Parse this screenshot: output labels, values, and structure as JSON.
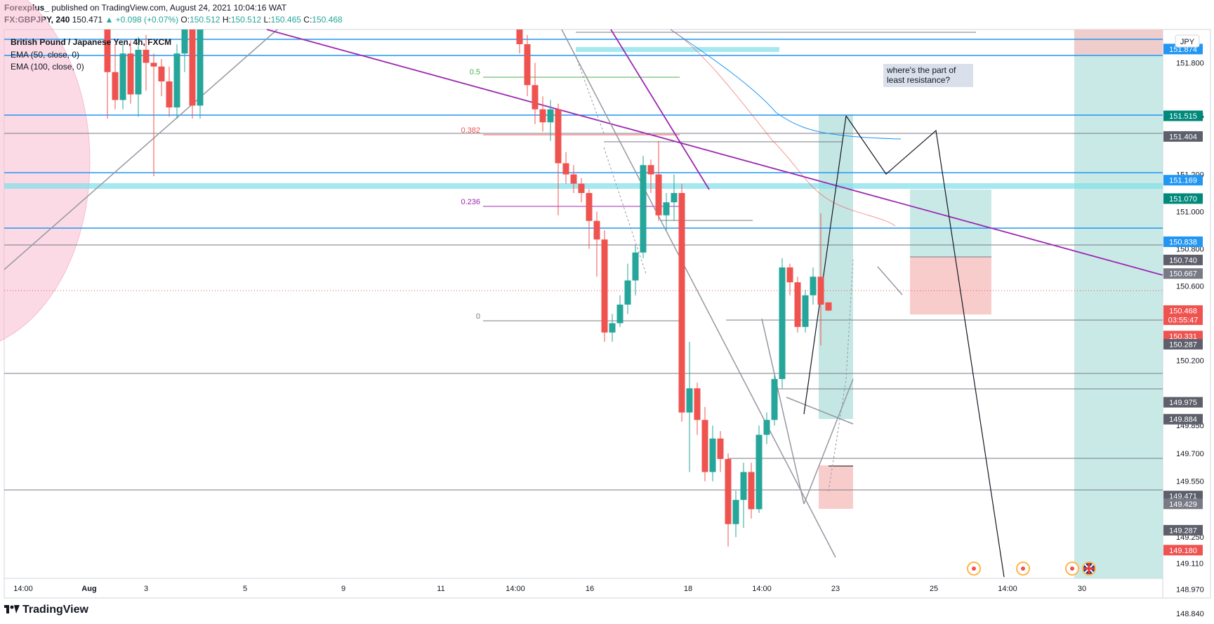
{
  "header": {
    "author": "Forexplus_",
    "published": "published on TradingView.com, August 24, 2021 10:04:16 WAT",
    "symbol": "FX:GBPJPY, 240",
    "last": "150.471",
    "change": "▲ +0.098 (+0.07%)",
    "o_label": "O:",
    "o": "150.512",
    "h_label": "H:",
    "h": "150.512",
    "l_label": "L:",
    "l": "150.465",
    "c_label": "C:",
    "c": "150.468"
  },
  "legend": {
    "title": "British Pound / Japanese Yen, 4h, FXCM",
    "ema50": "EMA (50, close, 0)",
    "ema100": "EMA (100, close, 0)"
  },
  "annotation": "where's the part of least resistance?",
  "currency_badge": "JPY",
  "brand": "TradingView",
  "colors": {
    "up": "#26a69a",
    "down": "#ef5350",
    "blue_line": "#2196f3",
    "purple_line": "#9c27b0",
    "gray_line": "#787b86",
    "cyan_zone": "#80deea",
    "teal_zone": "#b2dfdb",
    "pink_zone": "#f8c6c6"
  },
  "chart_data": {
    "type": "candlestick",
    "instrument": "GBPJPY",
    "timeframe": "4h",
    "ylim": [
      148.76,
      151.99
    ],
    "y_ticks": [
      151.8,
      151.515,
      151.2,
      151.0,
      150.8,
      150.6,
      150.2,
      149.85,
      149.7,
      149.55,
      149.25,
      149.11,
      148.97,
      148.84
    ],
    "x_ticks": [
      "14:00",
      "Aug",
      "3",
      "5",
      "9",
      "11",
      "14:00",
      "16",
      "18",
      "14:00",
      "23",
      "25",
      "14:00",
      "30"
    ],
    "price_labels": [
      {
        "value": "151.874",
        "kind": "blue"
      },
      {
        "value": "151.515",
        "kind": "gray"
      },
      {
        "value": "151.515",
        "kind": "blue"
      },
      {
        "value": "151.515",
        "kind": "teal"
      },
      {
        "value": "151.404",
        "kind": "dark"
      },
      {
        "value": "151.169",
        "kind": "blue"
      },
      {
        "value": "151.070",
        "kind": "teal"
      },
      {
        "value": "150.838",
        "kind": "blue"
      },
      {
        "value": "150.740",
        "kind": "dark"
      },
      {
        "value": "150.667",
        "kind": "gray"
      },
      {
        "value": "150.468",
        "kind": "red"
      },
      {
        "value": "150.331",
        "kind": "red"
      },
      {
        "value": "150.287",
        "kind": "dark"
      },
      {
        "value": "149.975",
        "kind": "dark"
      },
      {
        "value": "149.884",
        "kind": "dark"
      },
      {
        "value": "149.471",
        "kind": "dark"
      },
      {
        "value": "149.429",
        "kind": "gray"
      },
      {
        "value": "149.287",
        "kind": "dark"
      },
      {
        "value": "149.180",
        "kind": "red"
      }
    ],
    "countdown": "03:55:47",
    "fib_levels": [
      {
        "label": "0.5",
        "value": 151.79
      },
      {
        "label": "0.382",
        "value": 151.41
      },
      {
        "label": "0.236",
        "value": 151.03
      },
      {
        "label": "0",
        "value": 150.29
      }
    ],
    "candles": [
      {
        "t": 153,
        "o": 151.99,
        "h": 152.1,
        "l": 151.5,
        "c": 151.75
      },
      {
        "t": 164,
        "o": 151.75,
        "h": 151.9,
        "l": 151.55,
        "c": 151.6
      },
      {
        "t": 175,
        "o": 151.6,
        "h": 151.9,
        "l": 151.55,
        "c": 151.85
      },
      {
        "t": 186,
        "o": 151.85,
        "h": 151.92,
        "l": 151.58,
        "c": 151.63
      },
      {
        "t": 197,
        "o": 151.63,
        "h": 151.94,
        "l": 151.51,
        "c": 151.87
      },
      {
        "t": 208,
        "o": 151.87,
        "h": 151.95,
        "l": 151.65,
        "c": 151.8
      },
      {
        "t": 219,
        "o": 151.8,
        "h": 151.85,
        "l": 151.19,
        "c": 151.78
      },
      {
        "t": 230,
        "o": 151.78,
        "h": 151.82,
        "l": 151.62,
        "c": 151.7
      },
      {
        "t": 241,
        "o": 151.7,
        "h": 151.78,
        "l": 151.51,
        "c": 151.56
      },
      {
        "t": 252,
        "o": 151.56,
        "h": 151.9,
        "l": 151.5,
        "c": 151.85
      },
      {
        "t": 263,
        "o": 151.85,
        "h": 152.1,
        "l": 151.75,
        "c": 151.99
      },
      {
        "t": 274,
        "o": 151.99,
        "h": 152.05,
        "l": 151.5,
        "c": 151.57
      },
      {
        "t": 285,
        "o": 151.57,
        "h": 152.1,
        "l": 151.5,
        "c": 151.99
      },
      {
        "t": 740,
        "o": 151.99,
        "h": 152.1,
        "l": 151.85,
        "c": 151.9
      },
      {
        "t": 751,
        "o": 151.9,
        "h": 151.95,
        "l": 151.62,
        "c": 151.68
      },
      {
        "t": 762,
        "o": 151.68,
        "h": 151.8,
        "l": 151.47,
        "c": 151.55
      },
      {
        "t": 773,
        "o": 151.55,
        "h": 151.62,
        "l": 151.43,
        "c": 151.48
      },
      {
        "t": 784,
        "o": 151.48,
        "h": 151.6,
        "l": 151.38,
        "c": 151.55
      },
      {
        "t": 795,
        "o": 151.55,
        "h": 151.58,
        "l": 150.98,
        "c": 151.26
      },
      {
        "t": 806,
        "o": 151.26,
        "h": 151.32,
        "l": 151.15,
        "c": 151.2
      },
      {
        "t": 817,
        "o": 151.2,
        "h": 151.25,
        "l": 151.1,
        "c": 151.15
      },
      {
        "t": 828,
        "o": 151.15,
        "h": 151.18,
        "l": 151.05,
        "c": 151.1
      },
      {
        "t": 839,
        "o": 151.1,
        "h": 151.12,
        "l": 150.8,
        "c": 150.95
      },
      {
        "t": 850,
        "o": 150.95,
        "h": 151.0,
        "l": 150.65,
        "c": 150.85
      },
      {
        "t": 861,
        "o": 150.85,
        "h": 150.9,
        "l": 150.3,
        "c": 150.35
      },
      {
        "t": 872,
        "o": 150.35,
        "h": 150.45,
        "l": 150.3,
        "c": 150.4
      },
      {
        "t": 883,
        "o": 150.4,
        "h": 150.55,
        "l": 150.38,
        "c": 150.5
      },
      {
        "t": 894,
        "o": 150.5,
        "h": 150.72,
        "l": 150.45,
        "c": 150.63
      },
      {
        "t": 905,
        "o": 150.63,
        "h": 150.82,
        "l": 150.55,
        "c": 150.78
      },
      {
        "t": 916,
        "o": 150.78,
        "h": 151.3,
        "l": 150.75,
        "c": 151.25
      },
      {
        "t": 927,
        "o": 151.25,
        "h": 151.28,
        "l": 151.1,
        "c": 151.2
      },
      {
        "t": 938,
        "o": 151.2,
        "h": 151.38,
        "l": 150.95,
        "c": 150.98
      },
      {
        "t": 949,
        "o": 150.98,
        "h": 151.1,
        "l": 150.9,
        "c": 151.05
      },
      {
        "t": 960,
        "o": 151.05,
        "h": 151.2,
        "l": 150.95,
        "c": 151.1
      },
      {
        "t": 971,
        "o": 151.1,
        "h": 151.15,
        "l": 149.87,
        "c": 149.92
      },
      {
        "t": 982,
        "o": 149.92,
        "h": 150.3,
        "l": 149.6,
        "c": 150.05
      },
      {
        "t": 993,
        "o": 150.05,
        "h": 150.08,
        "l": 149.8,
        "c": 149.88
      },
      {
        "t": 1004,
        "o": 149.88,
        "h": 149.95,
        "l": 149.55,
        "c": 149.6
      },
      {
        "t": 1015,
        "o": 149.6,
        "h": 149.85,
        "l": 149.55,
        "c": 149.78
      },
      {
        "t": 1026,
        "o": 149.78,
        "h": 149.82,
        "l": 149.6,
        "c": 149.67
      },
      {
        "t": 1037,
        "o": 149.67,
        "h": 149.7,
        "l": 149.2,
        "c": 149.32
      },
      {
        "t": 1048,
        "o": 149.32,
        "h": 149.5,
        "l": 149.25,
        "c": 149.45
      },
      {
        "t": 1059,
        "o": 149.45,
        "h": 149.65,
        "l": 149.3,
        "c": 149.6
      },
      {
        "t": 1070,
        "o": 149.6,
        "h": 149.65,
        "l": 149.35,
        "c": 149.4
      },
      {
        "t": 1081,
        "o": 149.4,
        "h": 149.85,
        "l": 149.38,
        "c": 149.8
      },
      {
        "t": 1092,
        "o": 149.8,
        "h": 149.92,
        "l": 149.75,
        "c": 149.88
      },
      {
        "t": 1103,
        "o": 149.88,
        "h": 150.12,
        "l": 149.85,
        "c": 150.1
      },
      {
        "t": 1114,
        "o": 150.1,
        "h": 150.75,
        "l": 150.05,
        "c": 150.7
      },
      {
        "t": 1125,
        "o": 150.7,
        "h": 150.72,
        "l": 150.55,
        "c": 150.62
      },
      {
        "t": 1136,
        "o": 150.62,
        "h": 150.65,
        "l": 150.35,
        "c": 150.38
      },
      {
        "t": 1147,
        "o": 150.38,
        "h": 150.58,
        "l": 150.35,
        "c": 150.55
      },
      {
        "t": 1158,
        "o": 150.55,
        "h": 150.7,
        "l": 150.5,
        "c": 150.65
      },
      {
        "t": 1169,
        "o": 150.65,
        "h": 150.99,
        "l": 150.28,
        "c": 150.5
      },
      {
        "t": 1180,
        "o": 150.512,
        "h": 150.512,
        "l": 150.465,
        "c": 150.468
      }
    ]
  }
}
